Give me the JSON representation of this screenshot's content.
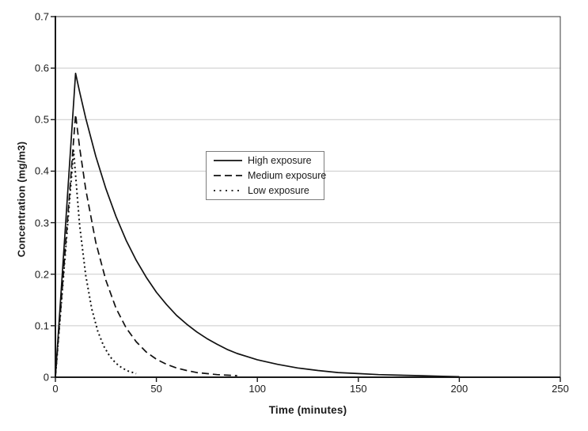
{
  "chart_data": {
    "type": "line",
    "title": "",
    "xlabel": "Time (minutes)",
    "ylabel": "Concentration (mg/m3)",
    "xlim": [
      0,
      250
    ],
    "ylim": [
      0,
      0.7
    ],
    "x_ticks": [
      "0",
      "50",
      "100",
      "150",
      "200",
      "250"
    ],
    "y_ticks": [
      "0",
      "0.1",
      "0.2",
      "0.3",
      "0.4",
      "0.5",
      "0.6",
      "0.7"
    ],
    "grid": "horizontal",
    "legend_position": "inside-upper-left-center",
    "axis_color": "#1a1a1a",
    "grid_color": "#c9c9c9",
    "line_color": "#111111",
    "series": [
      {
        "name": "High exposure",
        "line_style": "solid",
        "peak": {
          "t": 10,
          "c": 0.59
        },
        "points": [
          [
            0,
            0
          ],
          [
            5,
            0.295
          ],
          [
            10,
            0.59
          ],
          [
            12,
            0.554
          ],
          [
            15,
            0.503
          ],
          [
            20,
            0.429
          ],
          [
            25,
            0.366
          ],
          [
            30,
            0.312
          ],
          [
            35,
            0.266
          ],
          [
            40,
            0.227
          ],
          [
            45,
            0.194
          ],
          [
            50,
            0.165
          ],
          [
            55,
            0.141
          ],
          [
            60,
            0.12
          ],
          [
            65,
            0.103
          ],
          [
            70,
            0.088
          ],
          [
            75,
            0.075
          ],
          [
            80,
            0.064
          ],
          [
            85,
            0.054
          ],
          [
            90,
            0.046
          ],
          [
            95,
            0.04
          ],
          [
            100,
            0.034
          ],
          [
            110,
            0.025
          ],
          [
            120,
            0.018
          ],
          [
            130,
            0.013
          ],
          [
            140,
            0.009
          ],
          [
            150,
            0.007
          ],
          [
            160,
            0.005
          ],
          [
            170,
            0.004
          ],
          [
            180,
            0.003
          ],
          [
            190,
            0.002
          ],
          [
            200,
            0.001
          ]
        ]
      },
      {
        "name": "Medium exposure",
        "line_style": "dashed",
        "peak": {
          "t": 10,
          "c": 0.51
        },
        "points": [
          [
            0,
            0
          ],
          [
            5,
            0.255
          ],
          [
            10,
            0.51
          ],
          [
            12,
            0.446
          ],
          [
            15,
            0.365
          ],
          [
            20,
            0.262
          ],
          [
            25,
            0.188
          ],
          [
            30,
            0.134
          ],
          [
            35,
            0.096
          ],
          [
            40,
            0.069
          ],
          [
            45,
            0.049
          ],
          [
            50,
            0.035
          ],
          [
            55,
            0.025
          ],
          [
            60,
            0.018
          ],
          [
            65,
            0.013
          ],
          [
            70,
            0.009
          ],
          [
            75,
            0.007
          ],
          [
            80,
            0.005
          ],
          [
            85,
            0.004
          ],
          [
            90,
            0.003
          ]
        ]
      },
      {
        "name": "Low exposure",
        "line_style": "dotted",
        "peak": {
          "t": 9,
          "c": 0.44
        },
        "points": [
          [
            0,
            0
          ],
          [
            4.5,
            0.22
          ],
          [
            9,
            0.44
          ],
          [
            12,
            0.295
          ],
          [
            15,
            0.198
          ],
          [
            18,
            0.133
          ],
          [
            21,
            0.089
          ],
          [
            24,
            0.06
          ],
          [
            27,
            0.04
          ],
          [
            30,
            0.027
          ],
          [
            33,
            0.018
          ],
          [
            36,
            0.012
          ],
          [
            40,
            0.007
          ]
        ]
      }
    ]
  }
}
